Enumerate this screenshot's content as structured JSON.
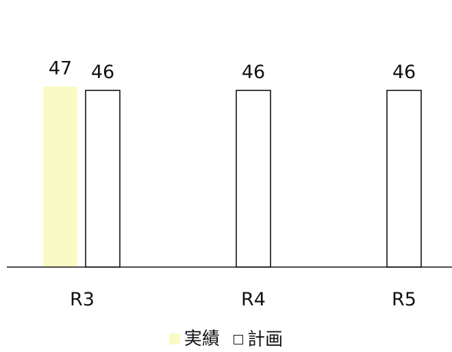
{
  "chart_data": {
    "type": "bar",
    "categories": [
      "R3",
      "R4",
      "R5"
    ],
    "series": [
      {
        "name": "実績",
        "values": [
          47,
          null,
          null
        ],
        "color": "#fafac4"
      },
      {
        "name": "計画",
        "values": [
          46,
          46,
          46
        ],
        "color": "#ffffff",
        "stroke": "#000000"
      }
    ],
    "data_labels": true,
    "grid": false,
    "legend_position": "bottom-center"
  }
}
